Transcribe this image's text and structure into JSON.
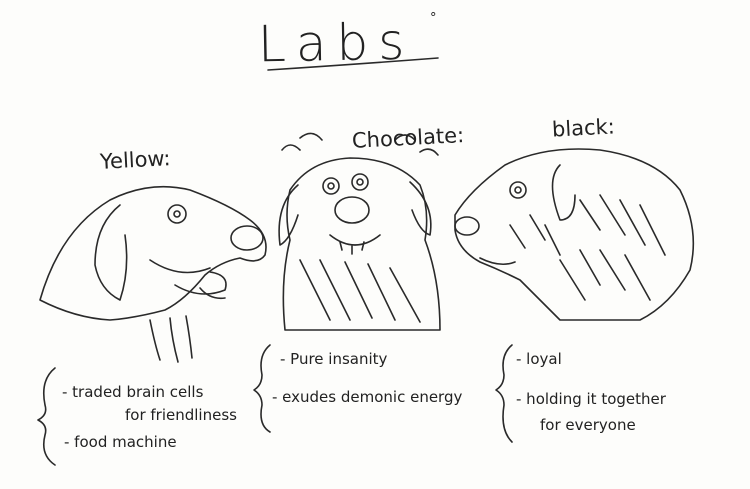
{
  "title": "Labs",
  "title_mark": "°",
  "yellow": {
    "header": "Yellow:",
    "notes": [
      "- traded brain cells",
      "for friendliness",
      "- food machine"
    ]
  },
  "chocolate": {
    "header": "Chocolate:",
    "notes": [
      "- Pure insanity",
      "- exudes demonic energy"
    ]
  },
  "black": {
    "header": "black:",
    "notes": [
      "- loyal",
      "- holding it together",
      "for everyone"
    ]
  }
}
